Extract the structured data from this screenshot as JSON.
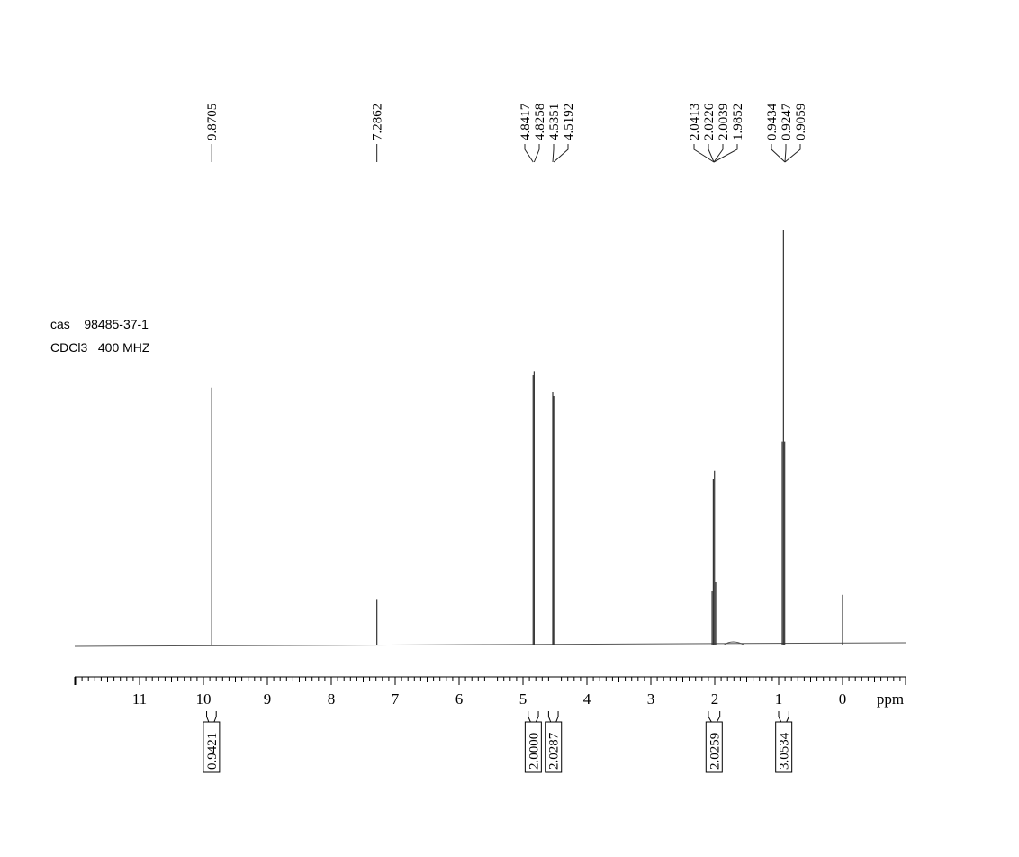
{
  "info": {
    "cas_line": "cas    98485-37-1",
    "solvent_line": "CDCl3   400 MHZ"
  },
  "chart_data": {
    "type": "line",
    "title": "",
    "xlabel": "ppm",
    "ylabel": "",
    "xlim": [
      12.0,
      -1.0
    ],
    "x_reversed": true,
    "grid": false,
    "x_ticks": [
      11,
      10,
      9,
      8,
      7,
      6,
      5,
      4,
      3,
      2,
      1,
      0
    ],
    "peak_labels": {
      "group1": [
        "9.8705"
      ],
      "group2": [
        "7.2862"
      ],
      "group3": [
        "4.8417",
        "4.8258",
        "4.5351",
        "4.5192"
      ],
      "group4": [
        "2.0413",
        "2.0226",
        "2.0039",
        "1.9852"
      ],
      "group5": [
        "0.9434",
        "0.9247",
        "0.9059"
      ]
    },
    "peaks": [
      {
        "x": 9.8705,
        "h": 0.62
      },
      {
        "x": 7.2862,
        "h": 0.11
      },
      {
        "x": 4.8417,
        "h": 0.65
      },
      {
        "x": 4.8258,
        "h": 0.66
      },
      {
        "x": 4.5351,
        "h": 0.61
      },
      {
        "x": 4.5192,
        "h": 0.6
      },
      {
        "x": 2.0413,
        "h": 0.13
      },
      {
        "x": 2.0226,
        "h": 0.4
      },
      {
        "x": 2.0039,
        "h": 0.42
      },
      {
        "x": 1.9852,
        "h": 0.15
      },
      {
        "x": 0.9434,
        "h": 0.49
      },
      {
        "x": 0.9247,
        "h": 1.0
      },
      {
        "x": 0.9059,
        "h": 0.49
      },
      {
        "x": 0.0,
        "h": 0.12
      }
    ],
    "integrals": [
      {
        "from": 9.95,
        "to": 9.8,
        "value": "0.9421"
      },
      {
        "from": 4.92,
        "to": 4.76,
        "value": "2.0000"
      },
      {
        "from": 4.6,
        "to": 4.45,
        "value": "2.0287"
      },
      {
        "from": 2.1,
        "to": 1.92,
        "value": "2.0259"
      },
      {
        "from": 1.0,
        "to": 0.84,
        "value": "3.0534"
      }
    ]
  }
}
